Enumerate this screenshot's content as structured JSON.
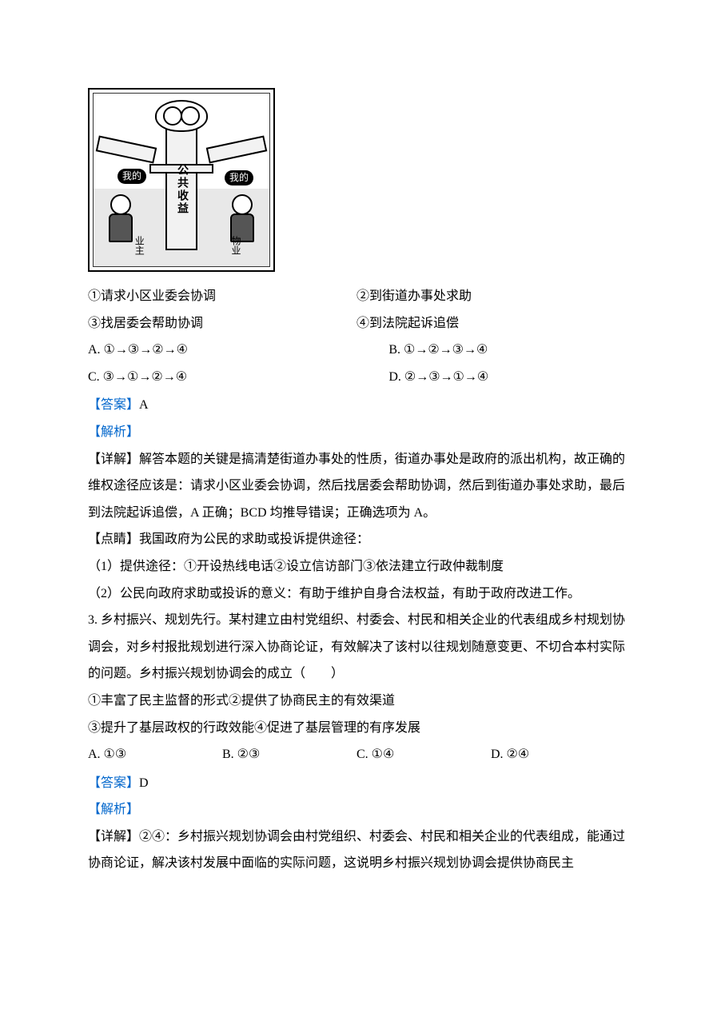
{
  "cartoon": {
    "center_text": "公共收益",
    "bubble_left": "我的",
    "bubble_right": "我的",
    "label_left": "业主",
    "label_right": "物业"
  },
  "q2": {
    "opt1": "①请求小区业委会协调",
    "opt2": "②到街道办事处求助",
    "opt3": "③找居委会帮助协调",
    "opt4": "④到法院起诉追偿",
    "choiceA": "A.  ①→③→②→④",
    "choiceB": "B.  ①→②→③→④",
    "choiceC": "C.  ③→①→②→④",
    "choiceD": "D.  ②→③→①→④",
    "answer_label": "【答案】",
    "answer_value": "A",
    "analysis_label": "【解析】",
    "detail": "【详解】解答本题的关键是搞清楚街道办事处的性质，街道办事处是政府的派出机构，故正确的维权途径应该是：请求小区业委会协调，然后找居委会帮助协调，然后到街道办事处求助，最后到法院起诉追偿，A 正确；BCD 均推导错误；正确选项为 A。",
    "tips_title": "【点睛】我国政府为公民的求助或投诉提供途径：",
    "tips_line1": "（1）提供途径：①开设热线电话②设立信访部门③依法建立行政仲裁制度",
    "tips_line2": "（2）公民向政府求助或投诉的意义：有助于维护自身合法权益，有助于政府改进工作。"
  },
  "q3": {
    "stem": "3. 乡村振兴、规划先行。某村建立由村党组织、村委会、村民和相关企业的代表组成乡村规划协调会，对乡村报批规划进行深入协商论证，有效解决了该村以往规划随意变更、不切合本村实际的问题。乡村振兴规划协调会的成立（　　）",
    "line1": "①丰富了民主监督的形式②提供了协商民主的有效渠道",
    "line2": "③提升了基层政权的行政效能④促进了基层管理的有序发展",
    "choiceA": "A.  ①③",
    "choiceB": "B.  ②③",
    "choiceC": "C.  ①④",
    "choiceD": "D.  ②④",
    "answer_label": "【答案】",
    "answer_value": "D",
    "analysis_label": "【解析】",
    "detail": "【详解】②④：乡村振兴规划协调会由村党组织、村委会、村民和相关企业的代表组成，能通过协商论证，解决该村发展中面临的实际问题，这说明乡村振兴规划协调会提供协商民主"
  }
}
